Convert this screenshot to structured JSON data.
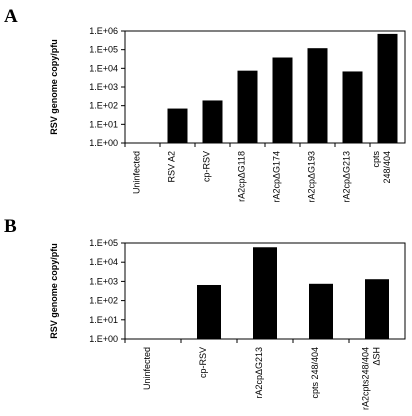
{
  "chart_data": [
    {
      "panel": "A",
      "type": "bar",
      "scale": "log",
      "ylabel": "RSV genome copy/pfu",
      "xlabel": "",
      "ylim": [
        1,
        1000000
      ],
      "yticks": [
        "1.E+00",
        "1.E+01",
        "1.E+02",
        "1.E+03",
        "1.E+04",
        "1.E+05",
        "1.E+06"
      ],
      "categories": [
        "Uninfected",
        "RSV A2",
        "cp-RSV",
        "rA2cpΔG118",
        "rA2cpΔG174",
        "rA2cpΔG193",
        "rA2cpΔG213",
        "cpts\n248/404"
      ],
      "values": [
        null,
        70,
        190,
        7500,
        38000,
        120000,
        6800,
        700000
      ],
      "grid": false,
      "legend": "none"
    },
    {
      "panel": "B",
      "type": "bar",
      "scale": "log",
      "ylabel": "RSV genome copy/pfu",
      "xlabel": "",
      "ylim": [
        1,
        100000
      ],
      "yticks": [
        "1.E+00",
        "1.E+01",
        "1.E+02",
        "1.E+03",
        "1.E+04",
        "1.E+05"
      ],
      "categories": [
        "Uninfected",
        "cp-RSV",
        "rA2cpΔG213",
        "cpts 248/404",
        "rA2cpts248/404\nΔSH"
      ],
      "values": [
        null,
        650,
        60000,
        750,
        1300
      ],
      "grid": false,
      "legend": "none"
    }
  ]
}
